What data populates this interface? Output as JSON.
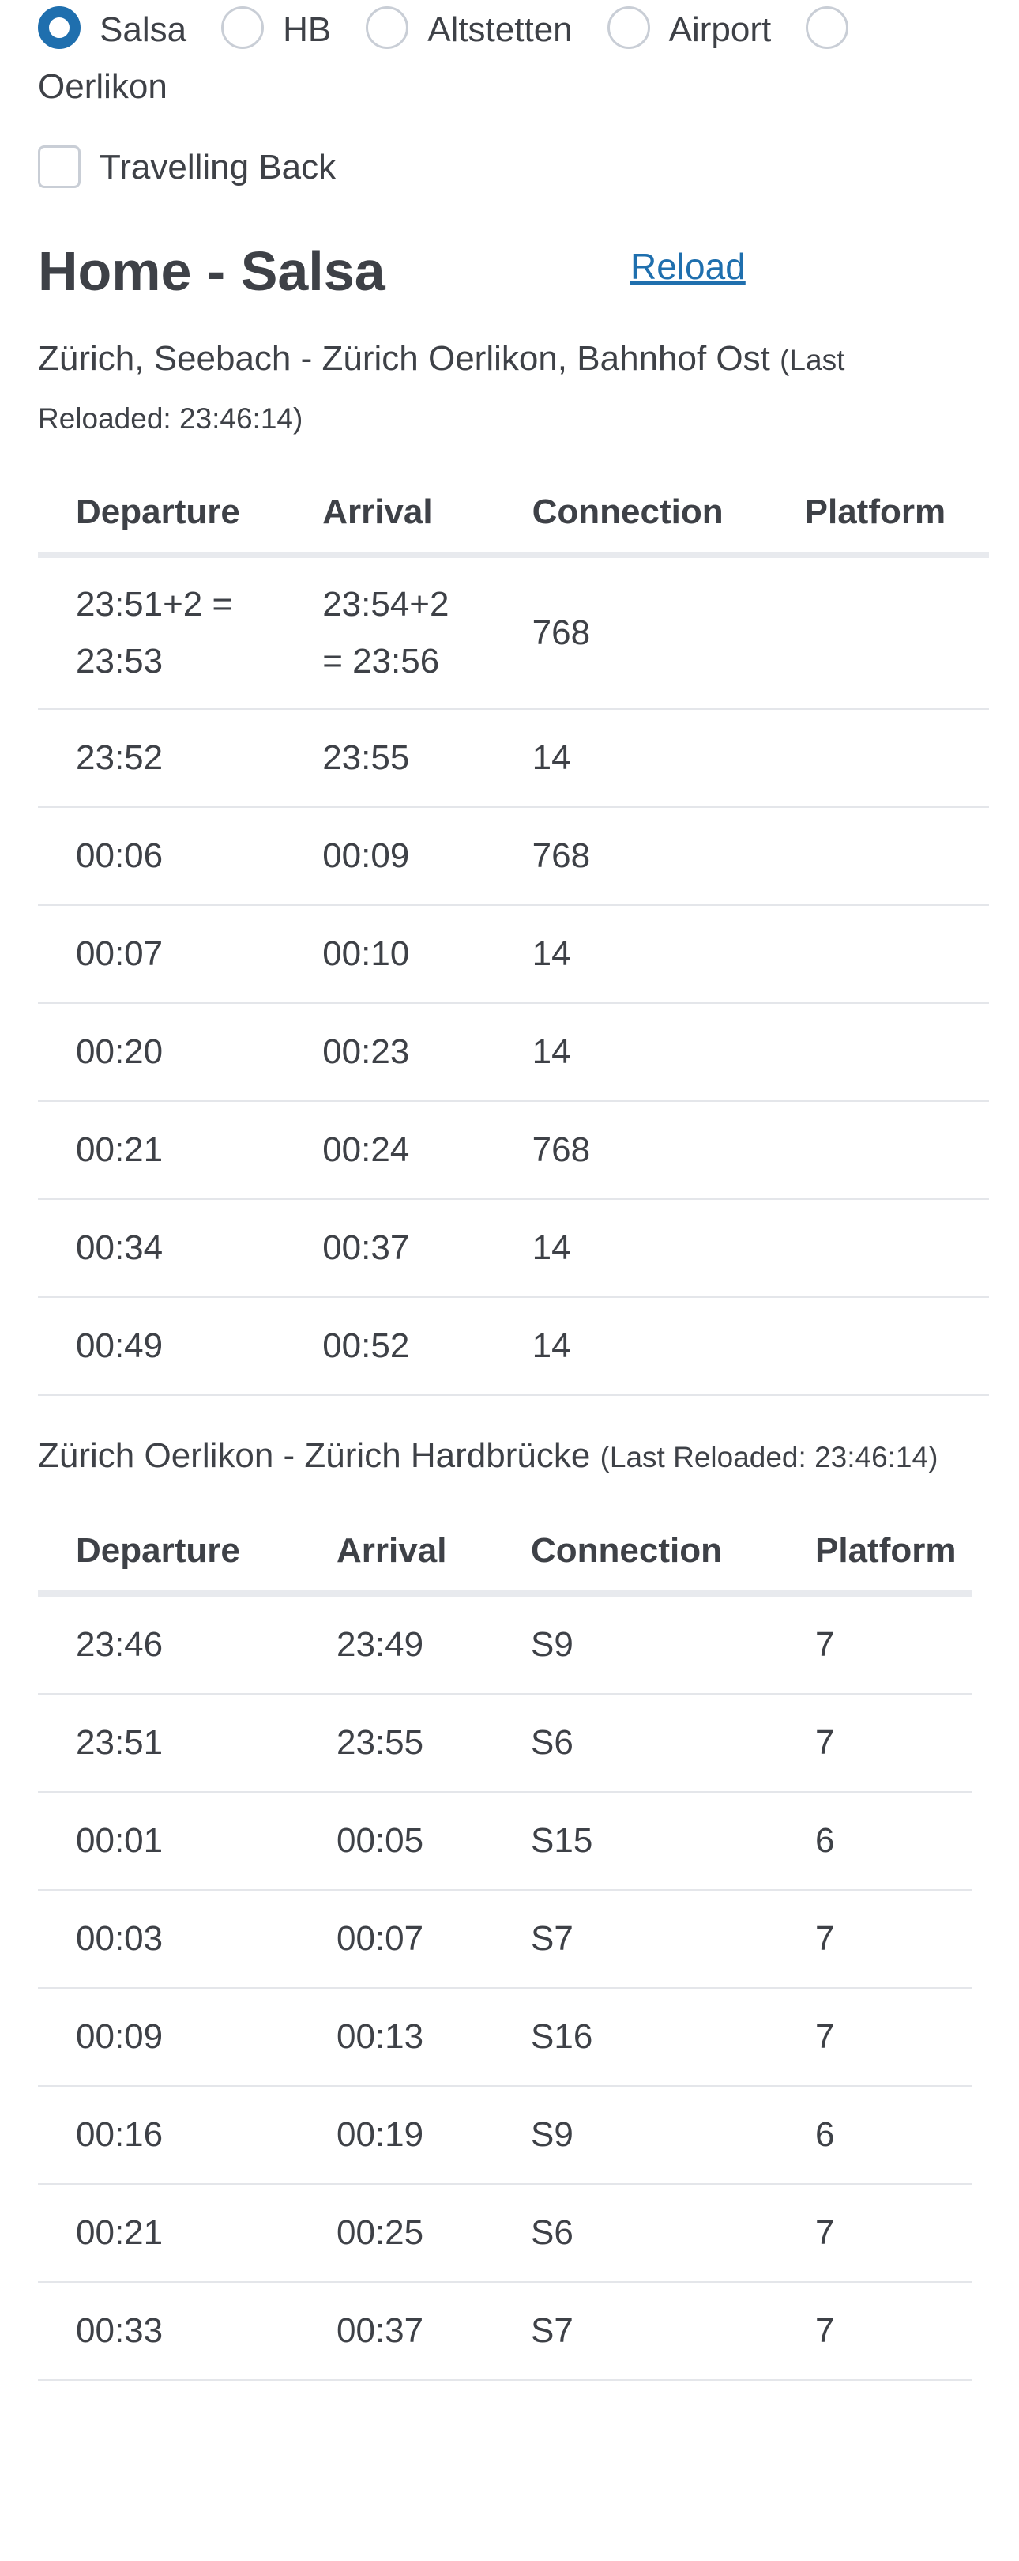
{
  "stations": {
    "options": [
      {
        "label": "Salsa",
        "checked": true
      },
      {
        "label": "HB",
        "checked": false
      },
      {
        "label": "Altstetten",
        "checked": false
      },
      {
        "label": "Airport",
        "checked": false
      },
      {
        "label": "Oerlikon",
        "checked": false
      }
    ]
  },
  "travelling_back": {
    "label": "Travelling Back",
    "checked": false
  },
  "header": {
    "title": "Home - Salsa",
    "reload_label": "Reload"
  },
  "routes": [
    {
      "heading": "Zürich, Seebach - Zürich Oerlikon, Bahnhof Ost",
      "meta": "(Last Reloaded: 23:46:14)",
      "columns": [
        "Departure",
        "Arrival",
        "Connection",
        "Platform"
      ],
      "rows": [
        {
          "departure": "23:51+2 = 23:53",
          "arrival": "23:54+2 = 23:56",
          "connection": "768",
          "platform": ""
        },
        {
          "departure": "23:52",
          "arrival": "23:55",
          "connection": "14",
          "platform": ""
        },
        {
          "departure": "00:06",
          "arrival": "00:09",
          "connection": "768",
          "platform": ""
        },
        {
          "departure": "00:07",
          "arrival": "00:10",
          "connection": "14",
          "platform": ""
        },
        {
          "departure": "00:20",
          "arrival": "00:23",
          "connection": "14",
          "platform": ""
        },
        {
          "departure": "00:21",
          "arrival": "00:24",
          "connection": "768",
          "platform": ""
        },
        {
          "departure": "00:34",
          "arrival": "00:37",
          "connection": "14",
          "platform": ""
        },
        {
          "departure": "00:49",
          "arrival": "00:52",
          "connection": "14",
          "platform": ""
        }
      ]
    },
    {
      "heading": "Zürich Oerlikon - Zürich Hardbrücke",
      "meta": "(Last Reloaded: 23:46:14)",
      "columns": [
        "Departure",
        "Arrival",
        "Connection",
        "Platform"
      ],
      "rows": [
        {
          "departure": "23:46",
          "arrival": "23:49",
          "connection": "S9",
          "platform": "7"
        },
        {
          "departure": "23:51",
          "arrival": "23:55",
          "connection": "S6",
          "platform": "7"
        },
        {
          "departure": "00:01",
          "arrival": "00:05",
          "connection": "S15",
          "platform": "6"
        },
        {
          "departure": "00:03",
          "arrival": "00:07",
          "connection": "S7",
          "platform": "7"
        },
        {
          "departure": "00:09",
          "arrival": "00:13",
          "connection": "S16",
          "platform": "7"
        },
        {
          "departure": "00:16",
          "arrival": "00:19",
          "connection": "S9",
          "platform": "6"
        },
        {
          "departure": "00:21",
          "arrival": "00:25",
          "connection": "S6",
          "platform": "7"
        },
        {
          "departure": "00:33",
          "arrival": "00:37",
          "connection": "S7",
          "platform": "7"
        }
      ]
    }
  ],
  "colors": {
    "accent": "#1f6fae",
    "text": "#3e4147",
    "border": "#e4e6ea"
  }
}
